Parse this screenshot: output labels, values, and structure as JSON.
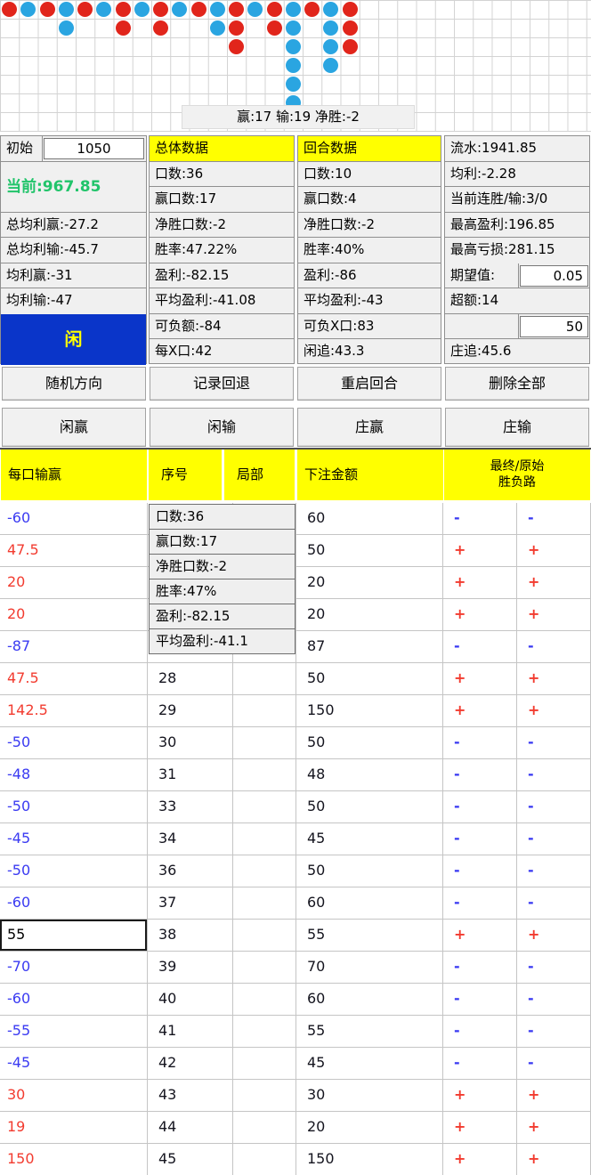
{
  "road": {
    "tooltip": "赢:17 输:19 净胜:-2",
    "red_color": "#e1251b",
    "blue_color": "#2aa5e1",
    "columns": [
      {
        "color": "red",
        "count": 1
      },
      {
        "color": "blue",
        "count": 1
      },
      {
        "color": "red",
        "count": 1
      },
      {
        "color": "blue",
        "count": 2
      },
      {
        "color": "red",
        "count": 1
      },
      {
        "color": "blue",
        "count": 1
      },
      {
        "color": "red",
        "count": 2
      },
      {
        "color": "blue",
        "count": 1
      },
      {
        "color": "red",
        "count": 2
      },
      {
        "color": "blue",
        "count": 1
      },
      {
        "color": "red",
        "count": 1
      },
      {
        "color": "blue",
        "count": 2
      },
      {
        "color": "red",
        "count": 3
      },
      {
        "color": "blue",
        "count": 1
      },
      {
        "color": "red",
        "count": 2
      },
      {
        "color": "blue",
        "count": 6
      },
      {
        "color": "red",
        "count": 1
      },
      {
        "color": "blue",
        "count": 4
      },
      {
        "color": "red",
        "count": 3
      }
    ]
  },
  "stats": {
    "initial_label": "初始",
    "initial_value": "1050",
    "current_text": "当前:967.85",
    "left_rows": [
      "总均利赢:-27.2",
      "总均利输:-45.7",
      "均利赢:-31",
      "均利输:-47"
    ],
    "side_label": "闲",
    "overall_header": "总体数据",
    "overall_rows": [
      "口数:36",
      "赢口数:17",
      "净胜口数:-2",
      "胜率:47.22%",
      "盈利:-82.15",
      "平均盈利:-41.08",
      "可负额:-84",
      "每X口:42"
    ],
    "round_header": "回合数据",
    "round_rows": [
      "口数:10",
      "赢口数:4",
      "净胜口数:-2",
      "胜率:40%",
      "盈利:-86",
      "平均盈利:-43",
      "可负X口:83",
      "闲追:43.3"
    ],
    "flow_rows": [
      "流水:1941.85",
      "均利:-2.28",
      "当前连胜/输:3/0",
      "最高盈利:196.85",
      "最高亏损:281.15"
    ],
    "expect_label": "期望值:",
    "expect_value": "0.05",
    "excess_text": "超额:14",
    "bet_unit_value": "50",
    "banker_chase_text": "庄追:45.6"
  },
  "buttons": {
    "row1": [
      "随机方向",
      "记录回退",
      "重启回合",
      "删除全部"
    ],
    "row2": [
      "闲赢",
      "闲输",
      "庄赢",
      "庄输"
    ]
  },
  "table": {
    "h_pnl": "每口输赢",
    "h_seq": "序号",
    "h_part": "局部",
    "h_bet": "下注金额",
    "h_result_line1": "最终/原始",
    "h_result_line2": "胜负路",
    "tooltip_lines": [
      "口数:36",
      "赢口数:17",
      "净胜口数:-2",
      "胜率:47%",
      "盈利:-82.15",
      "平均盈利:-41.1"
    ],
    "rows": [
      {
        "pnl": "-60",
        "seq": "",
        "part": "",
        "bet": "60",
        "final": "-",
        "orig": "-",
        "selected": false
      },
      {
        "pnl": "47.5",
        "seq": "",
        "part": "",
        "bet": "50",
        "final": "+",
        "orig": "+",
        "selected": false
      },
      {
        "pnl": "20",
        "seq": "",
        "part": "",
        "bet": "20",
        "final": "+",
        "orig": "+",
        "selected": false
      },
      {
        "pnl": "20",
        "seq": "",
        "part": "",
        "bet": "20",
        "final": "+",
        "orig": "+",
        "selected": false
      },
      {
        "pnl": "-87",
        "seq": "",
        "part": "",
        "bet": "87",
        "final": "-",
        "orig": "-",
        "selected": false
      },
      {
        "pnl": "47.5",
        "seq": "28",
        "part": "",
        "bet": "50",
        "final": "+",
        "orig": "+",
        "selected": false
      },
      {
        "pnl": "142.5",
        "seq": "29",
        "part": "",
        "bet": "150",
        "final": "+",
        "orig": "+",
        "selected": false
      },
      {
        "pnl": "-50",
        "seq": "30",
        "part": "",
        "bet": "50",
        "final": "-",
        "orig": "-",
        "selected": false
      },
      {
        "pnl": "-48",
        "seq": "31",
        "part": "",
        "bet": "48",
        "final": "-",
        "orig": "-",
        "selected": false
      },
      {
        "pnl": "-50",
        "seq": "33",
        "part": "",
        "bet": "50",
        "final": "-",
        "orig": "-",
        "selected": false
      },
      {
        "pnl": "-45",
        "seq": "34",
        "part": "",
        "bet": "45",
        "final": "-",
        "orig": "-",
        "selected": false
      },
      {
        "pnl": "-50",
        "seq": "36",
        "part": "",
        "bet": "50",
        "final": "-",
        "orig": "-",
        "selected": false
      },
      {
        "pnl": "-60",
        "seq": "37",
        "part": "",
        "bet": "60",
        "final": "-",
        "orig": "-",
        "selected": false
      },
      {
        "pnl": "55",
        "seq": "38",
        "part": "",
        "bet": "55",
        "final": "+",
        "orig": "+",
        "selected": true
      },
      {
        "pnl": "-70",
        "seq": "39",
        "part": "",
        "bet": "70",
        "final": "-",
        "orig": "-",
        "selected": false
      },
      {
        "pnl": "-60",
        "seq": "40",
        "part": "",
        "bet": "60",
        "final": "-",
        "orig": "-",
        "selected": false
      },
      {
        "pnl": "-55",
        "seq": "41",
        "part": "",
        "bet": "55",
        "final": "-",
        "orig": "-",
        "selected": false
      },
      {
        "pnl": "-45",
        "seq": "42",
        "part": "",
        "bet": "45",
        "final": "-",
        "orig": "-",
        "selected": false
      },
      {
        "pnl": "30",
        "seq": "43",
        "part": "",
        "bet": "30",
        "final": "+",
        "orig": "+",
        "selected": false
      },
      {
        "pnl": "19",
        "seq": "44",
        "part": "",
        "bet": "20",
        "final": "+",
        "orig": "+",
        "selected": false
      },
      {
        "pnl": "150",
        "seq": "45",
        "part": "",
        "bet": "150",
        "final": "+",
        "orig": "+",
        "selected": false
      }
    ]
  },
  "colors": {
    "win_red": "#f23b2f",
    "loss_blue": "#3a3af2",
    "accent_yellow": "#ffff00",
    "player_blue": "#0a35c9",
    "current_green": "#21c46a"
  }
}
